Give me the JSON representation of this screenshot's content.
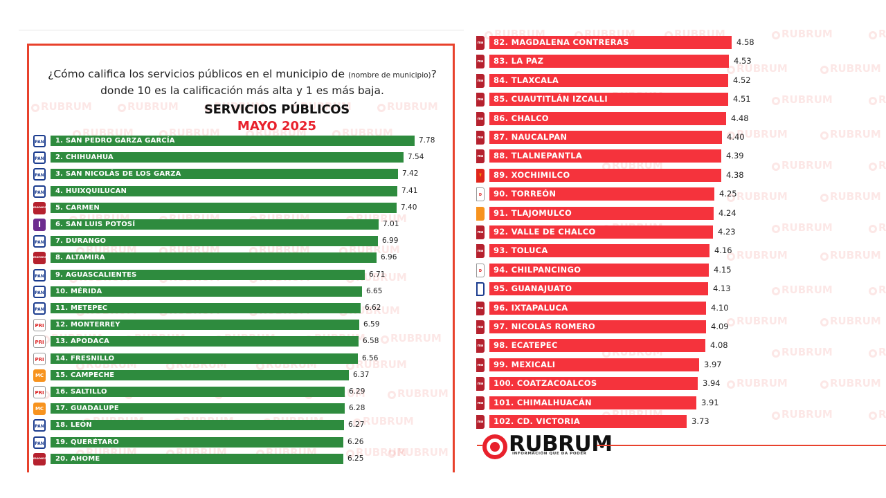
{
  "header": {
    "question_part1": "¿Cómo califica los servicios públicos en el municipio de",
    "question_small": "(nombre de municipio)",
    "question_part2": "?",
    "question_line2": "donde 10 es la calificación más alta y 1 es más baja.",
    "title": "SERVICIOS PÚBLICOS",
    "subtitle": "MAYO 2025"
  },
  "brand": {
    "name": "RUBRUM",
    "tagline": "INFORMACIÓN QUE DA PODER",
    "watermark": "RUBRUM"
  },
  "colors": {
    "green_bar": "#2e8b3e",
    "red_bar": "#f5333c",
    "accent": "#e8212c"
  },
  "chart_data": [
    {
      "type": "bar",
      "orientation": "horizontal",
      "title": "SERVICIOS PÚBLICOS",
      "subtitle": "MAYO 2025",
      "xlim": [
        0,
        10
      ],
      "categories": [
        "1. SAN PEDRO GARZA GARCÍA",
        "2. CHIHUAHUA",
        "3. SAN NICOLÁS DE LOS GARZA",
        "4. HUIXQUILUCAN",
        "5. CARMEN",
        "6. SAN LUIS POTOSÍ",
        "7. DURANGO",
        "8. ALTAMIRA",
        "9. AGUASCALIENTES",
        "10. MÉRIDA",
        "11. METEPEC",
        "12. MONTERREY",
        "13. APODACA",
        "14. FRESNILLO",
        "15. CAMPECHE",
        "16. SALTILLO",
        "17. GUADALUPE",
        "18. LEÓN",
        "19. QUERÉTARO",
        "20. AHOME"
      ],
      "values": [
        7.78,
        7.54,
        7.42,
        7.41,
        7.4,
        7.01,
        6.99,
        6.96,
        6.71,
        6.65,
        6.62,
        6.59,
        6.58,
        6.56,
        6.37,
        6.29,
        6.28,
        6.27,
        6.26,
        6.25
      ],
      "value_labels": [
        "7.78",
        "7.54",
        "7.42",
        "7.41",
        "7.40",
        "7.01",
        "6.99",
        "6.96",
        "6.71",
        "6.65",
        "6.62",
        "6.59",
        "6.58",
        "6.56",
        "6.37",
        "6.29",
        "6.28",
        "6.27",
        "6.26",
        "6.25"
      ],
      "parties": [
        "PAN",
        "PAN",
        "PAN",
        "PAN",
        "MORENA",
        "IND",
        "PAN",
        "MORENA",
        "PAN",
        "PAN",
        "PAN",
        "PRI",
        "PRI",
        "PRI",
        "MC",
        "PRI",
        "MC",
        "PAN",
        "PAN",
        "MORENA"
      ],
      "party_labels": [
        "PAN",
        "PAN",
        "PAN",
        "PAN",
        "morena",
        "I",
        "PAN",
        "morena",
        "PAN",
        "PAN",
        "PAN",
        "PRI",
        "PRI",
        "PRI",
        "MC",
        "PRI",
        "MC",
        "PAN",
        "PAN",
        "morena"
      ]
    },
    {
      "type": "bar",
      "orientation": "horizontal",
      "xlim": [
        0,
        10
      ],
      "categories": [
        "82. MAGDALENA CONTRERAS",
        "83. LA PAZ",
        "84. TLAXCALA",
        "85. CUAUTITLÁN IZCALLI",
        "86. CHALCO",
        "87. NAUCALPAN",
        "88. TLALNEPANTLA",
        "89. XOCHIMILCO",
        "90. TORREÓN",
        "91. TLAJOMULCO",
        "92. VALLE DE CHALCO",
        "93. TOLUCA",
        "94. CHILPANCINGO",
        "95. GUANAJUATO",
        "96. IXTAPALUCA",
        "97. NICOLÁS ROMERO",
        "98. ECATEPEC",
        "99. MEXICALI",
        "100. COATZACOALCOS",
        "101. CHIMALHUACÁN",
        "102. CD. VICTORIA"
      ],
      "values": [
        4.58,
        4.53,
        4.52,
        4.51,
        4.48,
        4.4,
        4.39,
        4.38,
        4.25,
        4.24,
        4.23,
        4.16,
        4.15,
        4.13,
        4.1,
        4.09,
        4.08,
        3.97,
        3.94,
        3.91,
        3.73
      ],
      "value_labels": [
        "4.58",
        "4.53",
        "4.52",
        "4.51",
        "4.48",
        "4.40",
        "4.39",
        "4.38",
        "4.25",
        "4.24",
        "4.23",
        "4.16",
        "4.15",
        "4.13",
        "4.10",
        "4.09",
        "4.08",
        "3.97",
        "3.94",
        "3.91",
        "3.73"
      ],
      "parties": [
        "MORENA",
        "MORENA",
        "MORENA",
        "MORENA",
        "MORENA",
        "MORENA",
        "MORENA",
        "PT",
        "PRI",
        "MC",
        "MORENA",
        "MORENA",
        "PRI",
        "PAN",
        "MORENA",
        "MORENA",
        "MORENA",
        "MORENA",
        "MORENA",
        "MORENA",
        "MORENA"
      ],
      "party_labels": [
        "ma",
        "ma",
        "ma",
        "ma",
        "ma",
        "ma",
        "ma",
        "T",
        "D",
        "",
        "ma",
        "ma",
        "D",
        "",
        "ma",
        "ma",
        "ma",
        "ma",
        "ma",
        "ma",
        "ma"
      ]
    }
  ]
}
